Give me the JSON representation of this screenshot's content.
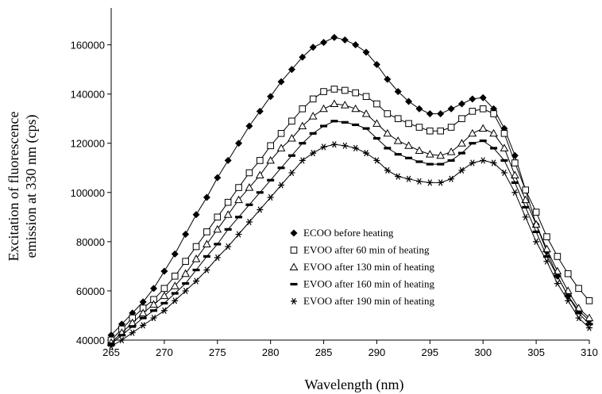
{
  "chart_data": {
    "type": "line",
    "title": "",
    "xlabel": "Wavelength (nm)",
    "ylabel_lines": [
      "Excitation of fluorescence",
      "emission at 330 nm (cps)"
    ],
    "xlim": [
      265,
      310
    ],
    "ylim": [
      40000,
      175000
    ],
    "x_ticks": [
      265,
      270,
      275,
      280,
      285,
      290,
      295,
      300,
      305,
      310
    ],
    "y_ticks": [
      40000,
      60000,
      80000,
      100000,
      120000,
      140000,
      160000
    ],
    "grid": false,
    "legend_position": "lower-center",
    "x": [
      265,
      266,
      267,
      268,
      269,
      270,
      271,
      272,
      273,
      274,
      275,
      276,
      277,
      278,
      279,
      280,
      281,
      282,
      283,
      284,
      285,
      286,
      287,
      288,
      289,
      290,
      291,
      292,
      293,
      294,
      295,
      296,
      297,
      298,
      299,
      300,
      301,
      302,
      303,
      304,
      305,
      306,
      307,
      308,
      309,
      310
    ],
    "series": [
      {
        "name": "ECOO before heating",
        "marker": "diamond",
        "values": [
          42000,
          46500,
          51000,
          55500,
          61000,
          68000,
          75000,
          83000,
          91000,
          98000,
          106000,
          113000,
          120000,
          127000,
          133000,
          139000,
          145000,
          150000,
          155000,
          159000,
          161000,
          163000,
          162000,
          160000,
          157000,
          152000,
          146000,
          141000,
          137000,
          134000,
          132000,
          132000,
          134000,
          136000,
          138000,
          138500,
          134000,
          126000,
          115000,
          101000,
          87000,
          76000,
          66000,
          58000,
          52000,
          48000
        ]
      },
      {
        "name": "EVOO after 60 min of heating",
        "marker": "square",
        "values": [
          40000,
          44500,
          49000,
          53000,
          56500,
          61000,
          66000,
          72000,
          78000,
          84000,
          90000,
          96000,
          102000,
          108000,
          113000,
          119000,
          124000,
          129000,
          134000,
          138000,
          141000,
          142000,
          141500,
          140500,
          139000,
          136000,
          132000,
          130000,
          128000,
          126500,
          125000,
          125000,
          126500,
          130000,
          133000,
          134000,
          132000,
          124000,
          112000,
          101000,
          92000,
          82000,
          74000,
          67000,
          61000,
          56000
        ]
      },
      {
        "name": "EVOO after 130 min of heating",
        "marker": "triangle",
        "values": [
          39000,
          43000,
          47000,
          51000,
          54500,
          58000,
          62000,
          67000,
          73000,
          79000,
          85000,
          91000,
          97000,
          102000,
          107000,
          113000,
          118000,
          122000,
          127000,
          131000,
          134000,
          136000,
          135500,
          134000,
          132000,
          128000,
          124000,
          121000,
          119000,
          117000,
          115500,
          115000,
          116500,
          120000,
          124000,
          126000,
          124000,
          118000,
          107000,
          97000,
          87000,
          77000,
          68000,
          60000,
          53000,
          49000
        ]
      },
      {
        "name": "EVOO after 160 min of heating",
        "marker": "dash",
        "values": [
          38500,
          42000,
          45500,
          49000,
          52000,
          55000,
          59000,
          63000,
          68500,
          74000,
          79000,
          85000,
          90000,
          95000,
          100000,
          105000,
          110000,
          115000,
          120000,
          124000,
          127000,
          129000,
          128500,
          127500,
          126000,
          122000,
          118000,
          115500,
          114000,
          112500,
          111500,
          111500,
          113000,
          116000,
          120000,
          121000,
          118000,
          113000,
          104000,
          94000,
          84000,
          74000,
          66000,
          58000,
          51000,
          46500
        ]
      },
      {
        "name": "EVOO after 190 min of heating",
        "marker": "star",
        "values": [
          37500,
          40000,
          43000,
          46000,
          49000,
          52000,
          56000,
          60000,
          64000,
          68500,
          73500,
          78000,
          83000,
          88000,
          93000,
          98000,
          103000,
          108000,
          113000,
          116000,
          118500,
          119500,
          119000,
          118000,
          116000,
          113000,
          109000,
          106500,
          105500,
          104500,
          104000,
          104000,
          105500,
          109000,
          112000,
          113000,
          112000,
          108000,
          100000,
          90000,
          80000,
          72000,
          63000,
          56000,
          49000,
          45000
        ]
      }
    ]
  }
}
